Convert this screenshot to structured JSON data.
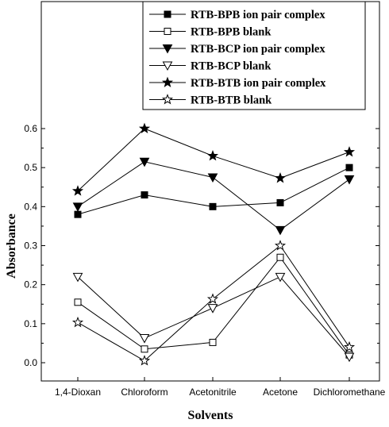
{
  "chart_data": {
    "type": "line",
    "title": "",
    "xlabel": "Solvents",
    "ylabel": "Absorbance",
    "categories": [
      "1,4-Dioxan",
      "Chloroform",
      "Acetonitrile",
      "Acetone",
      "Dichloromethane"
    ],
    "ylim": [
      -0.03,
      0.65
    ],
    "yticks": [
      0.0,
      0.1,
      0.2,
      0.3,
      0.4,
      0.5,
      0.6
    ],
    "ytick_labels": [
      "0.0",
      "0.1",
      "0.2",
      "0.3",
      "0.4",
      "0.5",
      "0.6"
    ],
    "grid": false,
    "legend_position": "top-right",
    "series": [
      {
        "name": "RTB-BPB ion pair complex",
        "marker": "square-filled",
        "values": [
          0.38,
          0.43,
          0.4,
          0.41,
          0.5
        ]
      },
      {
        "name": "RTB-BPB blank",
        "marker": "square-open",
        "values": [
          0.155,
          0.035,
          0.052,
          0.27,
          0.02
        ]
      },
      {
        "name": "RTB-BCP ion pair complex",
        "marker": "triangle-down-filled",
        "values": [
          0.4,
          0.515,
          0.475,
          0.34,
          0.47
        ]
      },
      {
        "name": "RTB-BCP blank",
        "marker": "triangle-down-open",
        "values": [
          0.22,
          0.063,
          0.14,
          0.22,
          0.015
        ]
      },
      {
        "name": "RTB-BTB ion pair complex",
        "marker": "star-filled",
        "values": [
          0.44,
          0.6,
          0.53,
          0.473,
          0.54
        ]
      },
      {
        "name": "RTB-BTB blank",
        "marker": "star-open",
        "values": [
          0.103,
          0.005,
          0.163,
          0.3,
          0.04
        ]
      }
    ],
    "line_color": "#000000"
  }
}
